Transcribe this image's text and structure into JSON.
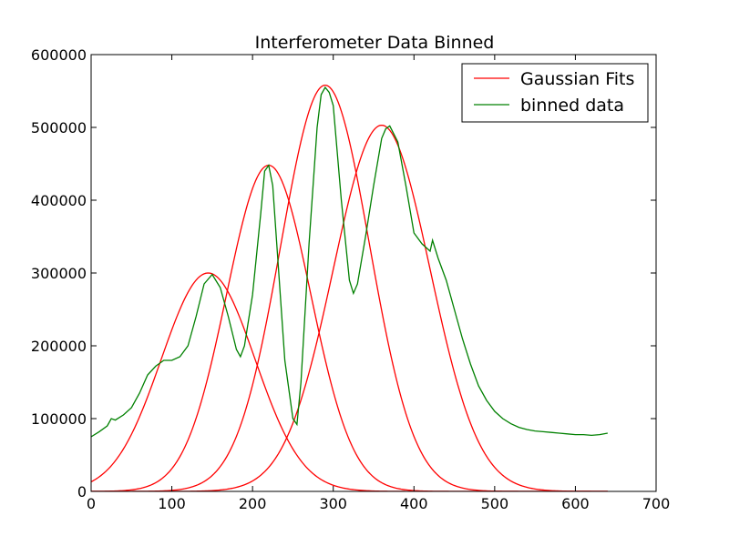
{
  "chart_data": {
    "type": "line",
    "title": "Interferometer Data Binned",
    "xlabel": "",
    "ylabel": "",
    "xlim": [
      0,
      700
    ],
    "ylim": [
      0,
      600000
    ],
    "x_ticks": [
      0,
      100,
      200,
      300,
      400,
      500,
      600,
      700
    ],
    "y_ticks": [
      0,
      100000,
      200000,
      300000,
      400000,
      500000,
      600000
    ],
    "grid": false,
    "legend_position": "top-right",
    "legend": [
      {
        "label": "Gaussian Fits",
        "color": "#ff0000"
      },
      {
        "label": "binned data",
        "color": "#008000"
      }
    ],
    "series": [
      {
        "name": "Gaussian Fits",
        "color": "#ff0000",
        "kind": "gaussian",
        "x_range": [
          0,
          640
        ],
        "components": [
          {
            "amplitude": 300000,
            "center": 145,
            "sigma": 58
          },
          {
            "amplitude": 448000,
            "center": 220,
            "sigma": 52
          },
          {
            "amplitude": 558000,
            "center": 290,
            "sigma": 55
          },
          {
            "amplitude": 503000,
            "center": 360,
            "sigma": 60
          }
        ]
      },
      {
        "name": "binned data",
        "color": "#008000",
        "kind": "line",
        "x": [
          0,
          10,
          20,
          25,
          30,
          40,
          50,
          60,
          70,
          80,
          90,
          100,
          110,
          120,
          130,
          140,
          150,
          160,
          170,
          180,
          185,
          190,
          200,
          210,
          215,
          220,
          225,
          230,
          240,
          250,
          255,
          260,
          270,
          280,
          285,
          290,
          295,
          300,
          310,
          320,
          325,
          330,
          340,
          350,
          360,
          365,
          370,
          380,
          390,
          400,
          410,
          420,
          423,
          430,
          440,
          450,
          460,
          470,
          480,
          490,
          500,
          510,
          520,
          530,
          540,
          550,
          560,
          570,
          580,
          590,
          600,
          610,
          620,
          630,
          640
        ],
        "values": [
          75000,
          82000,
          90000,
          100000,
          98000,
          105000,
          115000,
          135000,
          160000,
          172000,
          180000,
          180000,
          185000,
          200000,
          240000,
          285000,
          298000,
          280000,
          240000,
          195000,
          185000,
          200000,
          270000,
          380000,
          440000,
          448000,
          420000,
          340000,
          180000,
          100000,
          92000,
          150000,
          340000,
          500000,
          545000,
          555000,
          548000,
          530000,
          400000,
          290000,
          272000,
          285000,
          350000,
          420000,
          485000,
          498000,
          502000,
          480000,
          420000,
          355000,
          340000,
          330000,
          345000,
          320000,
          290000,
          250000,
          210000,
          175000,
          145000,
          125000,
          110000,
          100000,
          93000,
          88000,
          85000,
          83000,
          82000,
          81000,
          80000,
          79000,
          78000,
          78000,
          77000,
          78000,
          80000
        ]
      }
    ]
  }
}
